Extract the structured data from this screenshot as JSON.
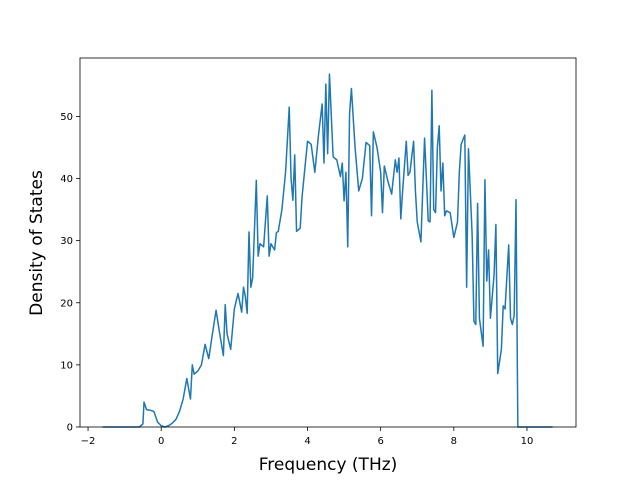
{
  "chart_data": {
    "type": "line",
    "xlabel": "Frequency (THz)",
    "ylabel": "Density of States",
    "x": [
      -1.6,
      -1.2,
      -0.8,
      -0.6,
      -0.5,
      -0.47,
      -0.4,
      -0.3,
      -0.2,
      -0.1,
      0,
      0.1,
      0.2,
      0.3,
      0.4,
      0.5,
      0.6,
      0.7,
      0.8,
      0.85,
      0.9,
      1.0,
      1.1,
      1.2,
      1.3,
      1.4,
      1.5,
      1.6,
      1.7,
      1.75,
      1.8,
      1.9,
      2.0,
      2.1,
      2.2,
      2.25,
      2.3,
      2.35,
      2.4,
      2.45,
      2.5,
      2.6,
      2.65,
      2.7,
      2.8,
      2.9,
      2.95,
      3.0,
      3.1,
      3.15,
      3.2,
      3.3,
      3.4,
      3.5,
      3.55,
      3.6,
      3.65,
      3.7,
      3.8,
      3.85,
      4.0,
      4.1,
      4.2,
      4.3,
      4.4,
      4.45,
      4.5,
      4.55,
      4.6,
      4.7,
      4.8,
      4.9,
      4.95,
      5.0,
      5.05,
      5.1,
      5.15,
      5.2,
      5.3,
      5.4,
      5.5,
      5.6,
      5.7,
      5.75,
      5.8,
      5.9,
      6.0,
      6.05,
      6.1,
      6.2,
      6.3,
      6.4,
      6.45,
      6.5,
      6.55,
      6.6,
      6.7,
      6.75,
      6.8,
      6.9,
      6.95,
      7.0,
      7.1,
      7.2,
      7.25,
      7.3,
      7.35,
      7.4,
      7.45,
      7.5,
      7.55,
      7.6,
      7.65,
      7.7,
      7.75,
      7.8,
      7.9,
      8.0,
      8.1,
      8.15,
      8.2,
      8.3,
      8.35,
      8.4,
      8.5,
      8.55,
      8.6,
      8.65,
      8.7,
      8.8,
      8.85,
      8.9,
      8.95,
      9.0,
      9.1,
      9.15,
      9.2,
      9.3,
      9.35,
      9.4,
      9.5,
      9.55,
      9.6,
      9.65,
      9.7,
      9.75,
      10.2,
      10.7
    ],
    "series": [
      {
        "color": "#1f77b4",
        "values": [
          0,
          0,
          0,
          0,
          0.5,
          4,
          2.8,
          2.7,
          2.5,
          0.8,
          0.2,
          0,
          0.2,
          0.6,
          1.2,
          2.5,
          4.5,
          7.8,
          4.5,
          10,
          8.5,
          9,
          10,
          13.3,
          11,
          15,
          18.8,
          15,
          11.5,
          19.7,
          15,
          12.5,
          19,
          21.5,
          18.5,
          22.5,
          21,
          18.3,
          31.4,
          22.5,
          24,
          39.7,
          27.5,
          29.5,
          29,
          37.2,
          27.5,
          29.5,
          28.5,
          31.3,
          31.5,
          35,
          41,
          51.5,
          40,
          36.5,
          43.8,
          31.5,
          32,
          37,
          46,
          45.5,
          41,
          47,
          52,
          42.5,
          55.2,
          44,
          56.8,
          43.5,
          43,
          40.3,
          42.5,
          36.4,
          41,
          29,
          50.5,
          54.5,
          45,
          38,
          40,
          45.8,
          45.3,
          34,
          47.5,
          45,
          41,
          34.5,
          42,
          39.5,
          37.5,
          43,
          41,
          43.3,
          33.5,
          38,
          46,
          40.5,
          41,
          46,
          38,
          33,
          29.8,
          46.5,
          40,
          33.2,
          33,
          54.2,
          35,
          34.5,
          45,
          48.5,
          38,
          42.5,
          34,
          34.8,
          34.5,
          30.5,
          33,
          41,
          45.5,
          47,
          22.5,
          44.8,
          31,
          17,
          16.5,
          36,
          17.5,
          13,
          39.8,
          23.5,
          28.5,
          17.5,
          24.5,
          32.6,
          8.6,
          12.5,
          19.5,
          19,
          29.3,
          17.5,
          16.5,
          18,
          36.6,
          0,
          0,
          0
        ]
      }
    ],
    "xlim": [
      -2.22,
      11.34
    ],
    "ylim": [
      0,
      59.4
    ],
    "xticks": [
      {
        "value": -2,
        "label": "−2"
      },
      0,
      2,
      4,
      6,
      8,
      10
    ],
    "yticks": [
      0,
      10,
      20,
      30,
      40,
      50
    ]
  }
}
